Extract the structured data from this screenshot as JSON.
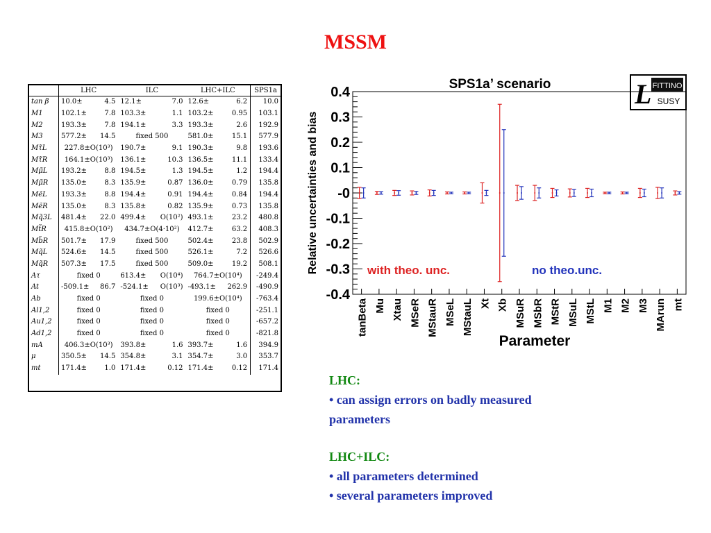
{
  "slide": {
    "title": "MSSM"
  },
  "table": {
    "headers": [
      "",
      "LHC",
      "ILC",
      "LHC+ILC",
      "SPS1a"
    ],
    "rows": [
      {
        "param": "tan β",
        "lhc": [
          "10.0±",
          "4.5"
        ],
        "ilc": [
          "12.1±",
          "7.0"
        ],
        "comb": [
          "12.6±",
          "6.2"
        ],
        "sps": "10.0"
      },
      {
        "param": "M1",
        "lhc": [
          "102.1±",
          "7.8"
        ],
        "ilc": [
          "103.3±",
          "1.1"
        ],
        "comb": [
          "103.2±",
          "0.95"
        ],
        "sps": "103.1"
      },
      {
        "param": "M2",
        "lhc": [
          "193.3±",
          "7.8"
        ],
        "ilc": [
          "194.1±",
          "3.3"
        ],
        "comb": [
          "193.3±",
          "2.6"
        ],
        "sps": "192.9"
      },
      {
        "param": "M3",
        "lhc": [
          "577.2±",
          "14.5"
        ],
        "ilc": [
          "fixed 500"
        ],
        "comb": [
          "581.0±",
          "15.1"
        ],
        "sps": "577.9"
      },
      {
        "param": "Mτ̃L",
        "lhc": [
          "227.8±O(10³)"
        ],
        "ilc": [
          "190.7±",
          "9.1"
        ],
        "comb": [
          "190.3±",
          "9.8"
        ],
        "sps": "193.6"
      },
      {
        "param": "Mτ̃R",
        "lhc": [
          "164.1±O(10³)"
        ],
        "ilc": [
          "136.1±",
          "10.3"
        ],
        "comb": [
          "136.5±",
          "11.1"
        ],
        "sps": "133.4"
      },
      {
        "param": "Mμ̃L",
        "lhc": [
          "193.2±",
          "8.8"
        ],
        "ilc": [
          "194.5±",
          "1.3"
        ],
        "comb": [
          "194.5±",
          "1.2"
        ],
        "sps": "194.4"
      },
      {
        "param": "Mμ̃R",
        "lhc": [
          "135.0±",
          "8.3"
        ],
        "ilc": [
          "135.9±",
          "0.87"
        ],
        "comb": [
          "136.0±",
          "0.79"
        ],
        "sps": "135.8"
      },
      {
        "param": "MẽL",
        "lhc": [
          "193.3±",
          "8.8"
        ],
        "ilc": [
          "194.4±",
          "0.91"
        ],
        "comb": [
          "194.4±",
          "0.84"
        ],
        "sps": "194.4"
      },
      {
        "param": "MẽR",
        "lhc": [
          "135.0±",
          "8.3"
        ],
        "ilc": [
          "135.8±",
          "0.82"
        ],
        "comb": [
          "135.9±",
          "0.73"
        ],
        "sps": "135.8"
      },
      {
        "param": "Mq̃3L",
        "lhc": [
          "481.4±",
          "22.0"
        ],
        "ilc": [
          "499.4±",
          "O(10²)"
        ],
        "comb": [
          "493.1±",
          "23.2"
        ],
        "sps": "480.8"
      },
      {
        "param": "Mt̃R",
        "lhc": [
          "415.8±O(10²)"
        ],
        "ilc": [
          "434.7±O(4·10²)"
        ],
        "comb": [
          "412.7±",
          "63.2"
        ],
        "sps": "408.3"
      },
      {
        "param": "Mb̃R",
        "lhc": [
          "501.7±",
          "17.9"
        ],
        "ilc": [
          "fixed 500"
        ],
        "comb": [
          "502.4±",
          "23.8"
        ],
        "sps": "502.9"
      },
      {
        "param": "Mq̃L",
        "lhc": [
          "524.6±",
          "14.5"
        ],
        "ilc": [
          "fixed 500"
        ],
        "comb": [
          "526.1±",
          "7.2"
        ],
        "sps": "526.6"
      },
      {
        "param": "Mq̃R",
        "lhc": [
          "507.3±",
          "17.5"
        ],
        "ilc": [
          "fixed 500"
        ],
        "comb": [
          "509.0±",
          "19.2"
        ],
        "sps": "508.1"
      },
      {
        "param": "Aτ",
        "lhc": [
          "fixed 0"
        ],
        "ilc": [
          "613.4±",
          "O(10⁴)"
        ],
        "comb": [
          "764.7±O(10⁴)"
        ],
        "sps": "-249.4"
      },
      {
        "param": "At",
        "lhc": [
          "-509.1±",
          "86.7"
        ],
        "ilc": [
          "-524.1±",
          "O(10³)"
        ],
        "comb": [
          "-493.1±",
          "262.9"
        ],
        "sps": "-490.9"
      },
      {
        "param": "Ab",
        "lhc": [
          "fixed 0"
        ],
        "ilc": [
          "fixed 0"
        ],
        "comb": [
          "199.6±O(10⁴)"
        ],
        "sps": "-763.4"
      },
      {
        "param": "Al1,2",
        "lhc": [
          "fixed 0"
        ],
        "ilc": [
          "fixed 0"
        ],
        "comb": [
          "fixed 0"
        ],
        "sps": "-251.1"
      },
      {
        "param": "Au1,2",
        "lhc": [
          "fixed 0"
        ],
        "ilc": [
          "fixed 0"
        ],
        "comb": [
          "fixed 0"
        ],
        "sps": "-657.2"
      },
      {
        "param": "Ad1,2",
        "lhc": [
          "fixed 0"
        ],
        "ilc": [
          "fixed 0"
        ],
        "comb": [
          "fixed 0"
        ],
        "sps": "-821.8"
      },
      {
        "param": "mA",
        "lhc": [
          "406.3±O(10³)"
        ],
        "ilc": [
          "393.8±",
          "1.6"
        ],
        "comb": [
          "393.7±",
          "1.6"
        ],
        "sps": "394.9"
      },
      {
        "param": "μ",
        "lhc": [
          "350.5±",
          "14.5"
        ],
        "ilc": [
          "354.8±",
          "3.1"
        ],
        "comb": [
          "354.7±",
          "3.0"
        ],
        "sps": "353.7"
      },
      {
        "param": "mt",
        "lhc": [
          "171.4±",
          "1.0"
        ],
        "ilc": [
          "171.4±",
          "0.12"
        ],
        "comb": [
          "171.4±",
          "0.12"
        ],
        "sps": "171.4"
      }
    ]
  },
  "chart_data": {
    "type": "scatter",
    "title": "SPS1a’ scenario",
    "xlabel": "Parameter",
    "ylabel": "Relative uncertainties and bias",
    "ylim": [
      -0.4,
      0.4
    ],
    "yticks": [
      "0.4",
      "0.3",
      "0.2",
      "0.1",
      "-0",
      "-0.1",
      "-0.2",
      "-0.3",
      "-0.4"
    ],
    "categories": [
      "tanBeta",
      "Mu",
      "Xtau",
      "MSeR",
      "MStauR",
      "MSeL",
      "MStauL",
      "Xt",
      "Xb",
      "MSuR",
      "MSbR",
      "MStR",
      "MSuL",
      "MStL",
      "M1",
      "M2",
      "M3",
      "MArun",
      "mt"
    ],
    "series": [
      {
        "name": "with theo. unc.",
        "color": "#dd2222",
        "values": [
          0,
          0,
          0,
          0,
          0,
          0,
          0,
          0,
          0,
          0,
          0,
          0,
          0,
          0,
          0,
          0,
          0,
          0,
          0
        ],
        "errors": [
          0.022,
          0.006,
          0.01,
          0.008,
          0.012,
          0.004,
          0.004,
          0.04,
          0.35,
          0.03,
          0.03,
          0.018,
          0.016,
          0.018,
          0.003,
          0.004,
          0.018,
          0.022,
          0.008
        ]
      },
      {
        "name": "no theo.unc.",
        "color": "#2233bb",
        "values": [
          0,
          0,
          0,
          0,
          0,
          0,
          0,
          0,
          0,
          0,
          0,
          0,
          0,
          0,
          0,
          0,
          0,
          0,
          0
        ],
        "errors": [
          0.02,
          0.005,
          0.009,
          0.006,
          0.01,
          0.003,
          0.003,
          0.01,
          0.25,
          0.025,
          0.02,
          0.012,
          0.014,
          0.015,
          0.003,
          0.003,
          0.015,
          0.02,
          0.005
        ]
      }
    ],
    "legend_placement": "bottom",
    "logo_text": [
      "FITTINO",
      "SUSY"
    ]
  },
  "notes": [
    {
      "heading": "LHC:",
      "lines": [
        "• can assign errors on badly measured",
        "parameters"
      ]
    },
    {
      "heading": "LHC+ILC:",
      "lines": [
        "• all parameters determined",
        "• several parameters improved"
      ]
    }
  ]
}
